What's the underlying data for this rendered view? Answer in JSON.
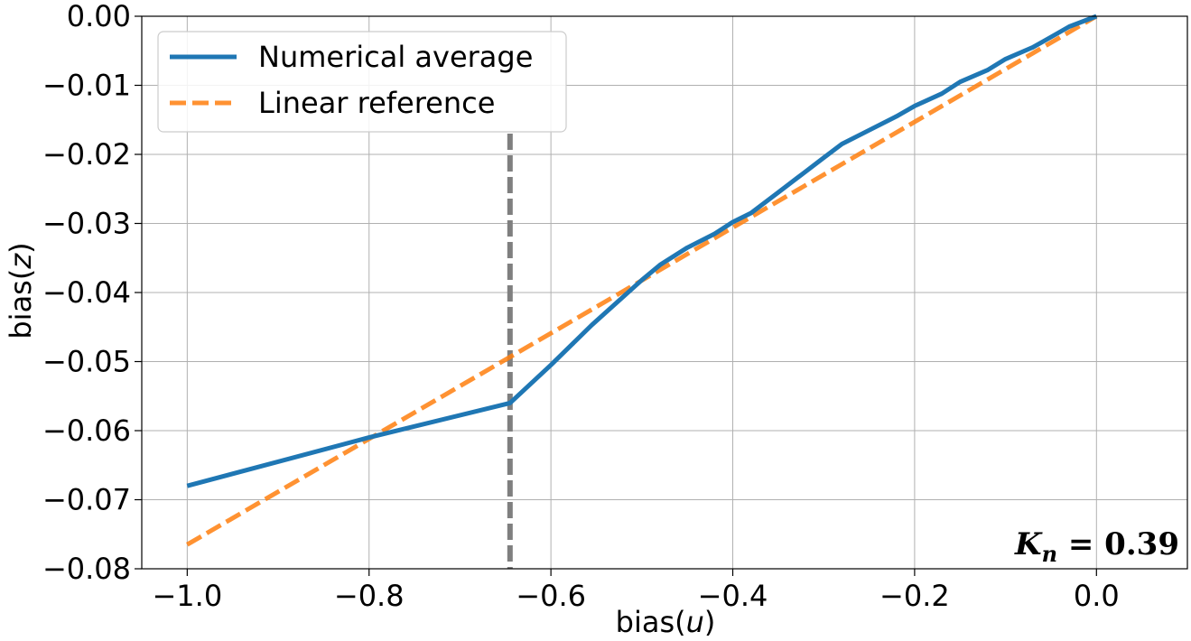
{
  "chart_data": {
    "type": "line",
    "title": "",
    "xlabel_prefix": "bias(",
    "xlabel_var": "u",
    "xlabel_suffix": ")",
    "ylabel_prefix": "bias(",
    "ylabel_var": "z",
    "ylabel_suffix": ")",
    "xlim": [
      -1.05,
      0.1
    ],
    "ylim": [
      -0.08,
      0.0
    ],
    "x_ticks": [
      -1.0,
      -0.8,
      -0.6,
      -0.4,
      -0.2,
      0.0
    ],
    "x_tick_labels": [
      "−1.0",
      "−0.8",
      "−0.6",
      "−0.4",
      "−0.2",
      "0.0"
    ],
    "y_ticks": [
      0.0,
      -0.01,
      -0.02,
      -0.03,
      -0.04,
      -0.05,
      -0.06,
      -0.07,
      -0.08
    ],
    "y_tick_labels": [
      "0.00",
      "−0.01",
      "−0.02",
      "−0.03",
      "−0.04",
      "−0.05",
      "−0.06",
      "−0.07",
      "−0.08"
    ],
    "grid": true,
    "legend_position": "top-left",
    "series": [
      {
        "name": "Numerical average",
        "color": "#1f77b4",
        "style": "solid",
        "x": [
          -1.0,
          -0.8,
          -0.645,
          -0.6,
          -0.555,
          -0.5,
          -0.48,
          -0.45,
          -0.42,
          -0.4,
          -0.38,
          -0.35,
          -0.33,
          -0.3,
          -0.28,
          -0.25,
          -0.22,
          -0.2,
          -0.17,
          -0.15,
          -0.12,
          -0.1,
          -0.07,
          -0.05,
          -0.03,
          0.0
        ],
        "y": [
          -0.068,
          -0.061,
          -0.056,
          -0.0505,
          -0.0447,
          -0.0382,
          -0.036,
          -0.0335,
          -0.0315,
          -0.0298,
          -0.0285,
          -0.0255,
          -0.0235,
          -0.0205,
          -0.0185,
          -0.0165,
          -0.0145,
          -0.013,
          -0.0112,
          -0.0095,
          -0.0078,
          -0.0062,
          -0.0045,
          -0.003,
          -0.0015,
          0.0
        ]
      },
      {
        "name": "Linear reference",
        "color": "#ff7f0e",
        "style": "dashed",
        "x": [
          -1.0,
          0.0
        ],
        "y": [
          -0.0765,
          0.0
        ]
      }
    ],
    "vertical_marker": {
      "x": -0.645,
      "color": "#7f7f7f",
      "style": "dashed"
    },
    "annotation": {
      "symbol": "K",
      "subscript": "n",
      "value_text": " = 0.39"
    }
  }
}
